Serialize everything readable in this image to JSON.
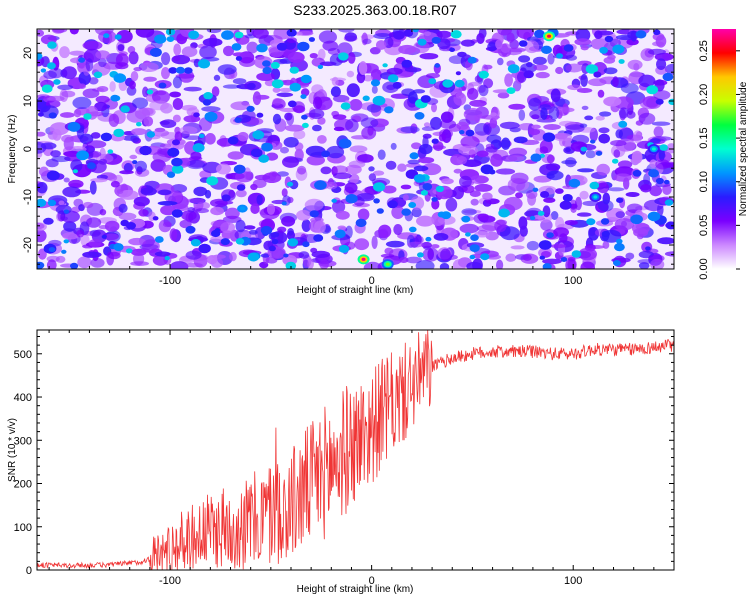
{
  "page": {
    "title": "S233.2025.363.00.18.R07"
  },
  "chart_data": [
    {
      "type": "heatmap",
      "xlabel": "Height of straight line (km)",
      "ylabel": "Frequency (Hz)",
      "xlim": [
        -166,
        150
      ],
      "ylim": [
        -25,
        25
      ],
      "xticks": [
        -100,
        0,
        100
      ],
      "yticks": [
        -20,
        -10,
        0,
        10,
        20
      ],
      "colorbar": {
        "label": "Normalized spectral amplitude",
        "range": [
          0.0,
          0.275
        ],
        "ticks": [
          0.0,
          0.05,
          0.1,
          0.15,
          0.2,
          0.25
        ],
        "tick_labels": [
          "0.00",
          "0.05",
          "0.10",
          "0.15",
          "0.20",
          "0.25"
        ],
        "colors": [
          "#ffffff",
          "#cc88ff",
          "#7a00ff",
          "#2a1cff",
          "#0096ff",
          "#00ffd0",
          "#00ff40",
          "#c8ff00",
          "#ffc800",
          "#ff0000",
          "#ff00aa"
        ]
      },
      "hotspots": [
        {
          "x": -4,
          "y": -23,
          "value": 0.27
        },
        {
          "x": 88,
          "y": 23.5,
          "value": 0.26
        },
        {
          "x": 8,
          "y": -24,
          "value": 0.18
        },
        {
          "x": 140,
          "y": 0,
          "value": 0.14
        },
        {
          "x": 111,
          "y": -10,
          "value": 0.13
        }
      ]
    },
    {
      "type": "line",
      "xlabel": "Height of straight line (km)",
      "ylabel": "SNR (10 * v/v)",
      "xlim": [
        -166,
        150
      ],
      "ylim": [
        0,
        555
      ],
      "xticks": [
        -100,
        0,
        100
      ],
      "yticks": [
        0,
        100,
        200,
        300,
        400,
        500
      ],
      "series": [
        {
          "name": "SNR",
          "color": "#f03535",
          "x": [
            -166,
            -150,
            -130,
            -115,
            -105,
            -100,
            -90,
            -80,
            -70,
            -60,
            -50,
            -40,
            -30,
            -20,
            -10,
            0,
            5,
            10,
            15,
            20,
            25,
            30,
            40,
            50,
            60,
            70,
            80,
            90,
            100,
            110,
            120,
            130,
            140,
            150
          ],
          "y": [
            12,
            10,
            12,
            18,
            35,
            50,
            75,
            90,
            100,
            110,
            130,
            150,
            200,
            240,
            290,
            330,
            360,
            380,
            400,
            430,
            450,
            470,
            490,
            500,
            505,
            505,
            505,
            500,
            500,
            510,
            510,
            510,
            515,
            520
          ]
        }
      ]
    }
  ]
}
